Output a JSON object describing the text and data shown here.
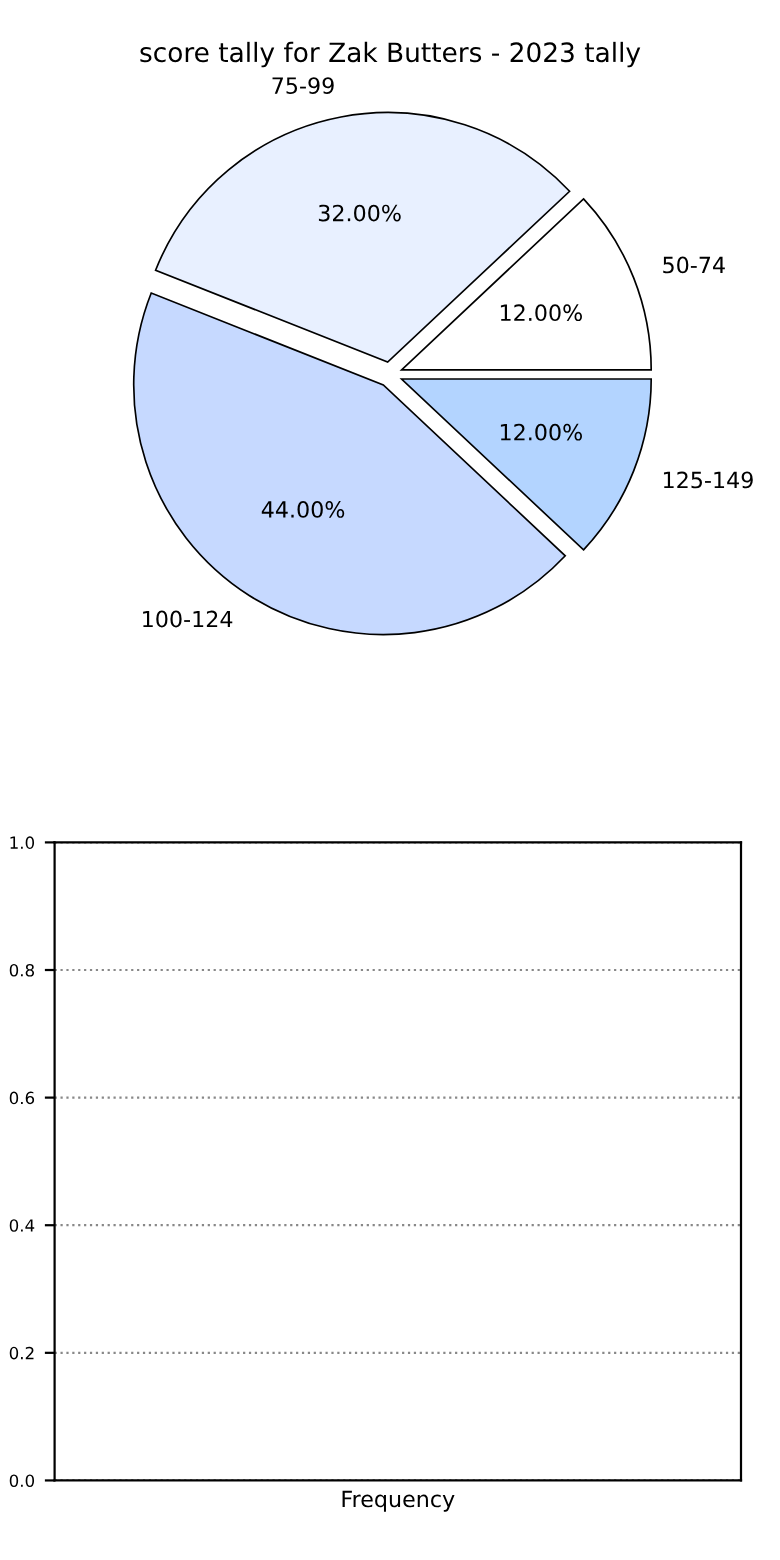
{
  "chart_data": [
    {
      "type": "pie",
      "title": "score tally for Zak Butters - 2023 tally",
      "categories": [
        "50-74",
        "75-99",
        "100-124",
        "125-149"
      ],
      "values": [
        12,
        32,
        44,
        12
      ],
      "colors": [
        "#ffffff",
        "#e8f0ff",
        "#c6d9ff",
        "#b3d4ff"
      ],
      "value_labels": [
        "12.00%",
        "32.00%",
        "44.00%",
        "12.00%"
      ]
    },
    {
      "type": "bar",
      "categories": [
        "Frequency"
      ],
      "values": [
        null
      ],
      "ylim": [
        0,
        1
      ],
      "yticks": [
        {
          "value": 0,
          "label": "0.0"
        },
        {
          "value": 0.2,
          "label": "0.2"
        },
        {
          "value": 0.4,
          "label": "0.4"
        },
        {
          "value": 0.6,
          "label": "0.6"
        },
        {
          "value": 0.8,
          "label": "0.8"
        },
        {
          "value": 1,
          "label": "1.0"
        }
      ],
      "grid": "y",
      "line_style": "dotted"
    }
  ]
}
